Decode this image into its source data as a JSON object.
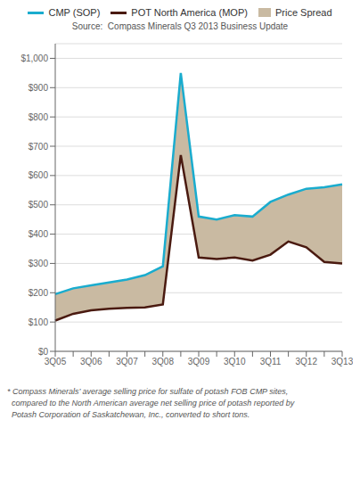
{
  "chart_data": {
    "type": "line",
    "categories": [
      "3Q05",
      null,
      "3Q06",
      null,
      "3Q07",
      null,
      "3Q08",
      null,
      "3Q09",
      null,
      "3Q10",
      null,
      "3Q11",
      null,
      "3Q12",
      null,
      "3Q13"
    ],
    "series": [
      {
        "name": "CMP (SOP)",
        "type": "line",
        "color": "#1AACCE",
        "values": [
          195,
          215,
          225,
          235,
          245,
          260,
          290,
          950,
          460,
          450,
          465,
          460,
          510,
          535,
          555,
          560,
          570
        ]
      },
      {
        "name": "POT North America (MOP)",
        "type": "line",
        "color": "#4A1A10",
        "values": [
          105,
          128,
          140,
          145,
          148,
          150,
          160,
          670,
          320,
          315,
          320,
          310,
          330,
          375,
          355,
          305,
          300
        ]
      },
      {
        "name": "Price Spread",
        "type": "area",
        "color": "#C9BAA2"
      }
    ],
    "ylim": [
      0,
      1050
    ],
    "yticks": [
      {
        "value": 0,
        "label": "$0"
      },
      {
        "value": 100,
        "label": "$100"
      },
      {
        "value": 200,
        "label": "$200"
      },
      {
        "value": 300,
        "label": "$300"
      },
      {
        "value": 400,
        "label": "$400"
      },
      {
        "value": 500,
        "label": "$500"
      },
      {
        "value": 600,
        "label": "$600"
      },
      {
        "value": 700,
        "label": "$700"
      },
      {
        "value": 800,
        "label": "$800"
      },
      {
        "value": 900,
        "label": "$900"
      },
      {
        "value": 1000,
        "label": "$1,000"
      }
    ],
    "grid": true,
    "legend": "top",
    "annotations": [
      "Source:  Compass Minerals Q3 2013 Business Update",
      "* Compass Minerals’ average selling price for sulfate of potash FOB CMP sites,",
      "  compared to the North American average net selling price of potash reported by",
      "  Potash Corporation of Saskatchewan, Inc., converted to short tons."
    ]
  }
}
